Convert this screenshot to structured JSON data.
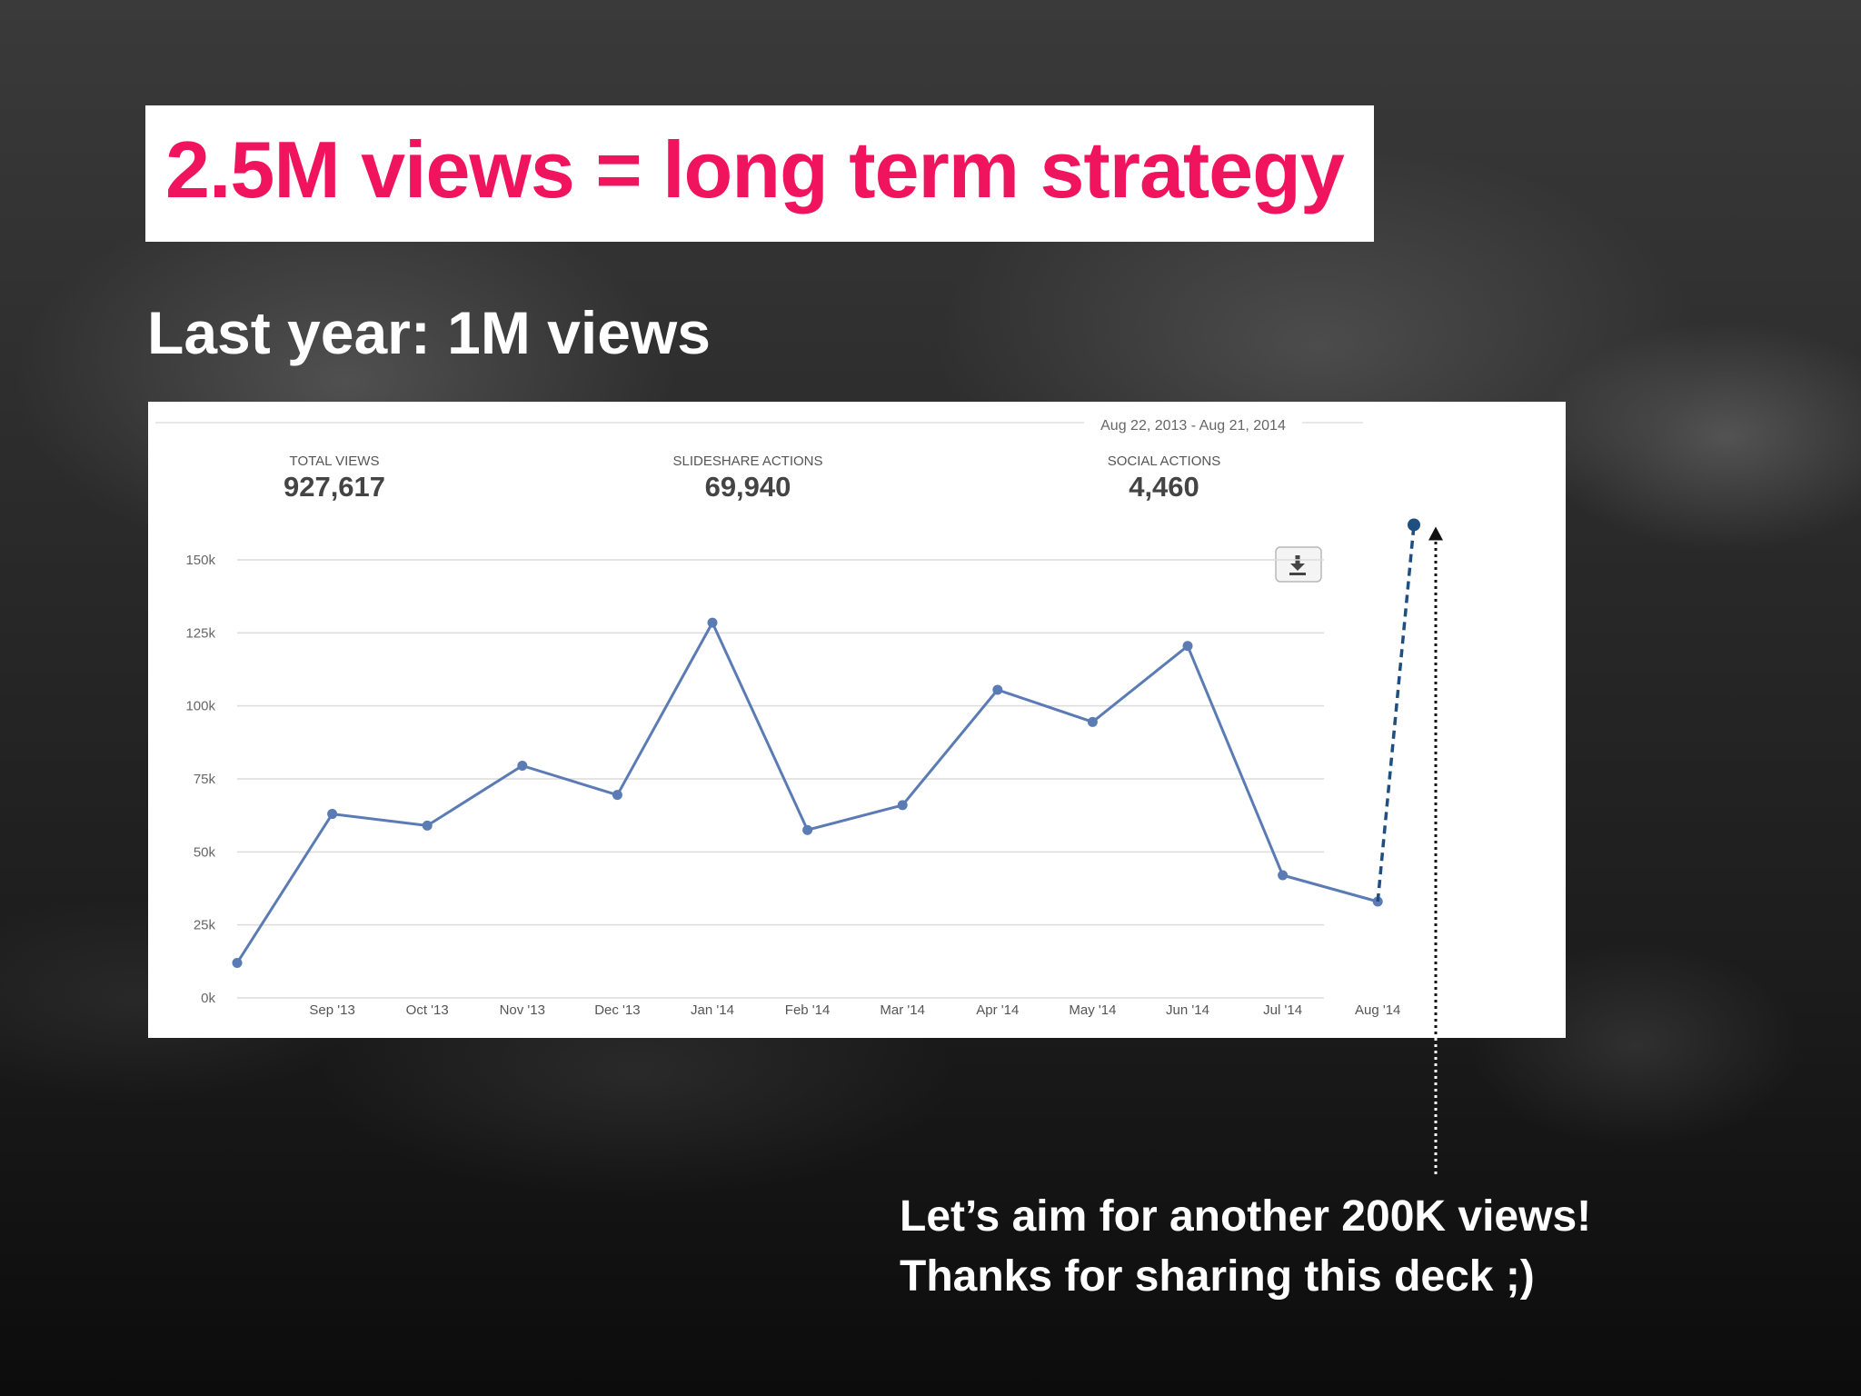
{
  "slide": {
    "title": "2.5M views = long term strategy",
    "subtitle": "Last year: 1M views",
    "footer_line1": "Let’s aim for another 200K views!",
    "footer_line2": "Thanks for sharing this deck ;)"
  },
  "stats": {
    "date_range": "Aug 22, 2013 - Aug 21, 2014",
    "items": [
      {
        "label": "TOTAL VIEWS",
        "value": "927,617"
      },
      {
        "label": "SLIDESHARE ACTIONS",
        "value": "69,940"
      },
      {
        "label": "SOCIAL ACTIONS",
        "value": "4,460"
      }
    ]
  },
  "download_icon": "download-icon",
  "colors": {
    "title": "#f0145f",
    "line": "#5b7bb5",
    "projection": "#1f4e80",
    "grid": "#dcdcdc"
  },
  "chart_data": {
    "type": "line",
    "x": [
      "",
      "Sep '13",
      "Oct '13",
      "Nov '13",
      "Dec '13",
      "Jan '14",
      "Feb '14",
      "Mar '14",
      "Apr '14",
      "May '14",
      "Jun '14",
      "Jul '14",
      "Aug '14"
    ],
    "tick_labels": [
      "Sep '13",
      "Oct '13",
      "Nov '13",
      "Dec '13",
      "Jan '14",
      "Feb '14",
      "Mar '14",
      "Apr '14",
      "May '14",
      "Jun '14",
      "Jul '14",
      "Aug '14"
    ],
    "series": [
      {
        "values": [
          12000,
          63000,
          59000,
          79500,
          69500,
          128500,
          57500,
          66000,
          105500,
          94500,
          120500,
          42000,
          33000
        ]
      }
    ],
    "projection": {
      "from": 33000,
      "to": 162000
    },
    "ylim": [
      0,
      150000
    ],
    "yticks": [
      {
        "value": 0,
        "label": "0k"
      },
      {
        "value": 25000,
        "label": "25k"
      },
      {
        "value": 50000,
        "label": "50k"
      },
      {
        "value": 75000,
        "label": "75k"
      },
      {
        "value": 100000,
        "label": "100k"
      },
      {
        "value": 125000,
        "label": "125k"
      },
      {
        "value": 150000,
        "label": "150k"
      }
    ],
    "grid": true,
    "legend": "none"
  }
}
